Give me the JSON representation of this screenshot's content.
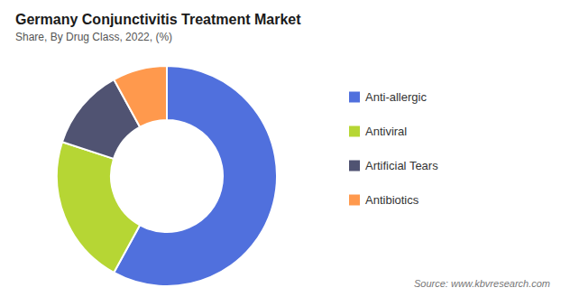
{
  "chart_data": {
    "type": "pie",
    "title": "Germany Conjunctivitis Treatment Market",
    "subtitle": "Share, By Drug Class, 2022, (%)",
    "categories": [
      "Anti-allergic",
      "Antiviral",
      "Artificial Tears",
      "Antibiotics"
    ],
    "values": [
      58,
      22,
      12,
      8
    ],
    "legend": "right",
    "source": "Source: www.kbvresearch.com"
  }
}
